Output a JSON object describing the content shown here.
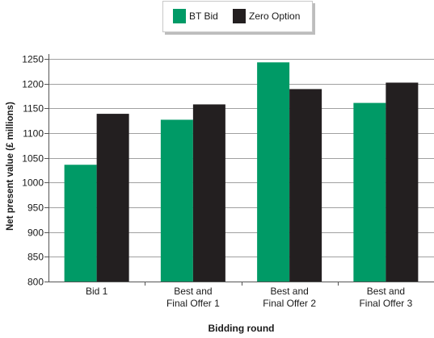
{
  "chart_data": {
    "type": "bar",
    "title": "",
    "xlabel": "Bidding round",
    "ylabel": "Net present value (£ millions)",
    "categories": [
      [
        "Bid 1"
      ],
      [
        "Best and",
        "Final Offer 1"
      ],
      [
        "Best and",
        "Final Offer 2"
      ],
      [
        "Best and",
        "Final Offer 3"
      ]
    ],
    "series": [
      {
        "name": "BT Bid",
        "color": "#009a66",
        "values": [
          1036,
          1127,
          1243,
          1161
        ]
      },
      {
        "name": "Zero Option",
        "color": "#231f20",
        "values": [
          1139,
          1158,
          1189,
          1202
        ]
      }
    ],
    "ylim": [
      800,
      1250
    ],
    "yticks": [
      800,
      850,
      900,
      950,
      1000,
      1050,
      1100,
      1150,
      1200,
      1250
    ],
    "grid": true,
    "legend_position": "top-center"
  }
}
